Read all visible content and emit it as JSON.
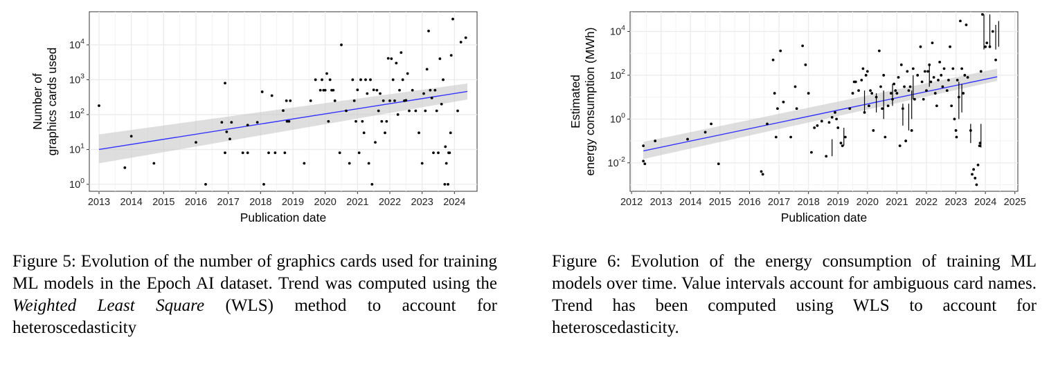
{
  "figures": [
    {
      "caption_prefix": "Figure 5: Evolution of the number of graphics cards used for training ML models in the Epoch AI dataset. Trend was computed using the ",
      "caption_italic": "Weighted Least Square",
      "caption_suffix": " (WLS) method to account for heteroscedasticity"
    },
    {
      "caption_prefix": "Figure 6: Evolution of the energy consumption of training ML models over time. Value intervals account for ambiguous card names. Trend has been computed using WLS to account for heteroscedasticity.",
      "caption_italic": "",
      "caption_suffix": ""
    }
  ],
  "colors": {
    "trend": "#3333ff",
    "band": "#c8c8c8",
    "points": "#000000",
    "grid": "#ebebeb",
    "panel": "#ffffff"
  },
  "chart_data": [
    {
      "type": "scatter",
      "xlabel": "Publication date",
      "ylabel_lines": [
        "Number of",
        "graphics cards used"
      ],
      "xlim": [
        2012.7,
        2024.7
      ],
      "ylim_log10": [
        -0.2,
        4.95
      ],
      "log_y": true,
      "x_ticks": [
        2013,
        2014,
        2015,
        2016,
        2017,
        2018,
        2019,
        2020,
        2021,
        2022,
        2023,
        2024
      ],
      "y_ticks_log10": [
        0,
        1,
        2,
        3,
        4
      ],
      "grid": true,
      "trend": {
        "x": [
          2013.0,
          2024.4
        ],
        "y": [
          10,
          460
        ],
        "band_low": [
          4,
          270
        ],
        "band_high": [
          27,
          780
        ]
      },
      "points": [
        [
          2013.0,
          180
        ],
        [
          2013.8,
          3
        ],
        [
          2014.0,
          24
        ],
        [
          2014.7,
          4
        ],
        [
          2016.0,
          16
        ],
        [
          2016.3,
          1
        ],
        [
          2016.8,
          60
        ],
        [
          2016.9,
          800
        ],
        [
          2016.9,
          8
        ],
        [
          2016.95,
          32
        ],
        [
          2017.05,
          20
        ],
        [
          2017.1,
          60
        ],
        [
          2017.45,
          8
        ],
        [
          2017.6,
          8
        ],
        [
          2017.6,
          50
        ],
        [
          2017.9,
          60
        ],
        [
          2018.05,
          450
        ],
        [
          2018.1,
          1
        ],
        [
          2018.25,
          8
        ],
        [
          2018.35,
          350
        ],
        [
          2018.45,
          8
        ],
        [
          2018.7,
          130
        ],
        [
          2018.75,
          8
        ],
        [
          2018.8,
          250
        ],
        [
          2018.82,
          64
        ],
        [
          2018.88,
          64
        ],
        [
          2018.92,
          250
        ],
        [
          2019.35,
          4
        ],
        [
          2019.55,
          250
        ],
        [
          2019.7,
          1000
        ],
        [
          2019.85,
          500
        ],
        [
          2019.9,
          1000
        ],
        [
          2019.95,
          500
        ],
        [
          2020.0,
          500
        ],
        [
          2020.05,
          1500
        ],
        [
          2020.1,
          64
        ],
        [
          2020.15,
          1000
        ],
        [
          2020.2,
          500
        ],
        [
          2020.25,
          500
        ],
        [
          2020.3,
          250
        ],
        [
          2020.45,
          8
        ],
        [
          2020.5,
          10000
        ],
        [
          2020.65,
          128
        ],
        [
          2020.75,
          4
        ],
        [
          2020.85,
          1000
        ],
        [
          2020.9,
          250
        ],
        [
          2020.95,
          64
        ],
        [
          2021.0,
          512
        ],
        [
          2021.05,
          8
        ],
        [
          2021.1,
          1000
        ],
        [
          2021.15,
          64
        ],
        [
          2021.2,
          30
        ],
        [
          2021.25,
          1000
        ],
        [
          2021.3,
          400
        ],
        [
          2021.35,
          4
        ],
        [
          2021.4,
          1000
        ],
        [
          2021.45,
          1
        ],
        [
          2021.5,
          512
        ],
        [
          2021.55,
          16
        ],
        [
          2021.6,
          500
        ],
        [
          2021.65,
          128
        ],
        [
          2021.7,
          400
        ],
        [
          2021.75,
          64
        ],
        [
          2021.8,
          250
        ],
        [
          2021.85,
          30
        ],
        [
          2021.9,
          64
        ],
        [
          2021.95,
          4096
        ],
        [
          2022.0,
          250
        ],
        [
          2022.05,
          4000
        ],
        [
          2022.1,
          1000
        ],
        [
          2022.15,
          250
        ],
        [
          2022.2,
          3000
        ],
        [
          2022.25,
          100
        ],
        [
          2022.3,
          500
        ],
        [
          2022.35,
          6000
        ],
        [
          2022.4,
          1000
        ],
        [
          2022.45,
          250
        ],
        [
          2022.5,
          256
        ],
        [
          2022.55,
          1500
        ],
        [
          2022.6,
          128
        ],
        [
          2022.7,
          500
        ],
        [
          2022.8,
          128
        ],
        [
          2022.9,
          30
        ],
        [
          2023.0,
          4
        ],
        [
          2023.05,
          400
        ],
        [
          2023.1,
          128
        ],
        [
          2023.15,
          2000
        ],
        [
          2023.2,
          25000
        ],
        [
          2023.25,
          500
        ],
        [
          2023.3,
          300
        ],
        [
          2023.35,
          8
        ],
        [
          2023.4,
          500
        ],
        [
          2023.45,
          128
        ],
        [
          2023.5,
          8
        ],
        [
          2023.55,
          4000
        ],
        [
          2023.6,
          200
        ],
        [
          2023.65,
          1000
        ],
        [
          2023.7,
          1
        ],
        [
          2023.72,
          12
        ],
        [
          2023.75,
          4
        ],
        [
          2023.8,
          1
        ],
        [
          2023.82,
          8
        ],
        [
          2023.85,
          8
        ],
        [
          2023.88,
          30
        ],
        [
          2023.9,
          5000
        ],
        [
          2023.95,
          55000
        ],
        [
          2024.1,
          128
        ],
        [
          2024.2,
          12000
        ],
        [
          2024.35,
          16000
        ]
      ]
    },
    {
      "type": "scatter",
      "xlabel": "Publication date",
      "ylabel_lines": [
        "Estimated",
        "energy consumption (MWh)"
      ],
      "xlim": [
        2011.95,
        2025.1
      ],
      "ylim_log10": [
        -3.3,
        4.9
      ],
      "log_y": true,
      "x_ticks": [
        2012,
        2013,
        2014,
        2015,
        2016,
        2017,
        2018,
        2019,
        2020,
        2021,
        2022,
        2023,
        2024,
        2025
      ],
      "x_tick_labels": [
        "2012",
        "2013",
        "2014",
        "2015",
        "2016",
        "2017",
        "2018",
        "2019",
        "2020",
        "2021",
        "2022",
        "2023",
        "2024",
        "2025"
      ],
      "y_ticks_log10": [
        -2,
        0,
        2,
        4
      ],
      "grid": true,
      "trend": {
        "x": [
          2012.4,
          2024.4
        ],
        "y": [
          0.035,
          85
        ],
        "band_low": [
          0.015,
          55
        ],
        "band_high": [
          0.09,
          200
        ]
      },
      "points": [
        [
          2012.4,
          0.06
        ],
        [
          2012.4,
          0.012
        ],
        [
          2012.45,
          0.009
        ],
        [
          2012.8,
          0.1
        ],
        [
          2013.9,
          0.12
        ],
        [
          2014.5,
          0.25
        ],
        [
          2014.7,
          0.6
        ],
        [
          2014.95,
          0.009
        ],
        [
          2016.4,
          0.004
        ],
        [
          2016.45,
          0.003
        ],
        [
          2016.6,
          0.6
        ],
        [
          2016.8,
          500
        ],
        [
          2016.85,
          15
        ],
        [
          2016.9,
          0.15
        ],
        [
          2016.95,
          3
        ],
        [
          2017.05,
          1300
        ],
        [
          2017.15,
          6
        ],
        [
          2017.4,
          0.15
        ],
        [
          2017.55,
          30
        ],
        [
          2017.6,
          3
        ],
        [
          2017.8,
          2200
        ],
        [
          2017.9,
          300
        ],
        [
          2018.0,
          15
        ],
        [
          2018.1,
          0.03
        ],
        [
          2018.2,
          0.4
        ],
        [
          2018.3,
          0.5
        ],
        [
          2018.45,
          0.8
        ],
        [
          2018.6,
          0.02
        ],
        [
          2018.7,
          0.7
        ],
        [
          2018.8,
          1.2
        ],
        [
          2018.9,
          2
        ],
        [
          2018.95,
          1
        ],
        [
          2019.0,
          0.4
        ],
        [
          2019.1,
          0.08
        ],
        [
          2019.15,
          0.06
        ],
        [
          2019.25,
          0.15
        ],
        [
          2019.4,
          3
        ],
        [
          2019.5,
          15
        ],
        [
          2019.55,
          50
        ],
        [
          2019.6,
          50
        ],
        [
          2019.7,
          20
        ],
        [
          2019.8,
          60
        ],
        [
          2019.85,
          200
        ],
        [
          2019.9,
          2
        ],
        [
          2019.95,
          100
        ],
        [
          2020.0,
          150
        ],
        [
          2020.05,
          4
        ],
        [
          2020.1,
          20
        ],
        [
          2020.15,
          15
        ],
        [
          2020.2,
          0.3
        ],
        [
          2020.3,
          10
        ],
        [
          2020.4,
          1300
        ],
        [
          2020.45,
          30
        ],
        [
          2020.5,
          3
        ],
        [
          2020.55,
          100
        ],
        [
          2020.6,
          0.15
        ],
        [
          2020.7,
          4
        ],
        [
          2020.8,
          15
        ],
        [
          2020.85,
          8
        ],
        [
          2020.9,
          40
        ],
        [
          2020.95,
          20
        ],
        [
          2021.0,
          15
        ],
        [
          2021.05,
          80
        ],
        [
          2021.1,
          0.06
        ],
        [
          2021.15,
          300
        ],
        [
          2021.2,
          3
        ],
        [
          2021.25,
          30
        ],
        [
          2021.3,
          0.1
        ],
        [
          2021.35,
          150
        ],
        [
          2021.4,
          20
        ],
        [
          2021.45,
          30
        ],
        [
          2021.5,
          0.3
        ],
        [
          2021.55,
          200
        ],
        [
          2021.6,
          8
        ],
        [
          2021.7,
          100
        ],
        [
          2021.8,
          2000
        ],
        [
          2021.85,
          50
        ],
        [
          2021.9,
          8
        ],
        [
          2021.95,
          150
        ],
        [
          2022.0,
          20
        ],
        [
          2022.05,
          150
        ],
        [
          2022.1,
          300
        ],
        [
          2022.15,
          50
        ],
        [
          2022.2,
          3000
        ],
        [
          2022.25,
          80
        ],
        [
          2022.3,
          15
        ],
        [
          2022.35,
          4
        ],
        [
          2022.4,
          60
        ],
        [
          2022.45,
          400
        ],
        [
          2022.5,
          100
        ],
        [
          2022.55,
          30
        ],
        [
          2022.6,
          200
        ],
        [
          2022.7,
          20
        ],
        [
          2022.75,
          60
        ],
        [
          2022.8,
          2000
        ],
        [
          2022.85,
          4
        ],
        [
          2022.9,
          200
        ],
        [
          2022.95,
          1
        ],
        [
          2023.0,
          0.3
        ],
        [
          2023.02,
          0.15
        ],
        [
          2023.05,
          60
        ],
        [
          2023.1,
          10
        ],
        [
          2023.15,
          30000
        ],
        [
          2023.2,
          200
        ],
        [
          2023.25,
          15
        ],
        [
          2023.3,
          100
        ],
        [
          2023.35,
          20000
        ],
        [
          2023.4,
          80
        ],
        [
          2023.5,
          0.3
        ],
        [
          2023.55,
          0.003
        ],
        [
          2023.6,
          0.005
        ],
        [
          2023.65,
          0.002
        ],
        [
          2023.7,
          0.001
        ],
        [
          2023.75,
          0.008
        ],
        [
          2023.8,
          0.06
        ],
        [
          2023.82,
          0.08
        ],
        [
          2023.85,
          150
        ],
        [
          2023.9,
          60000
        ],
        [
          2024.0,
          2000
        ],
        [
          2024.05,
          3000
        ],
        [
          2024.15,
          2000
        ],
        [
          2024.25,
          10000
        ],
        [
          2024.35,
          500
        ]
      ],
      "intervals": [
        [
          2018.8,
          0.02,
          0.12
        ],
        [
          2019.2,
          0.06,
          0.4
        ],
        [
          2019.9,
          2,
          20
        ],
        [
          2020.3,
          2,
          15
        ],
        [
          2020.55,
          1,
          20
        ],
        [
          2020.85,
          4,
          40
        ],
        [
          2021.2,
          0.5,
          5
        ],
        [
          2021.4,
          0.3,
          5
        ],
        [
          2021.5,
          1,
          20
        ],
        [
          2021.55,
          8,
          100
        ],
        [
          2022.1,
          30,
          300
        ],
        [
          2023.1,
          1,
          50
        ],
        [
          2023.2,
          2,
          40
        ],
        [
          2023.5,
          0.08,
          0.6
        ],
        [
          2023.85,
          0.05,
          0.6
        ],
        [
          2023.95,
          1500,
          60000
        ],
        [
          2024.15,
          2000,
          60000
        ],
        [
          2024.35,
          1500,
          20000
        ],
        [
          2024.45,
          2000,
          30000
        ]
      ]
    }
  ]
}
